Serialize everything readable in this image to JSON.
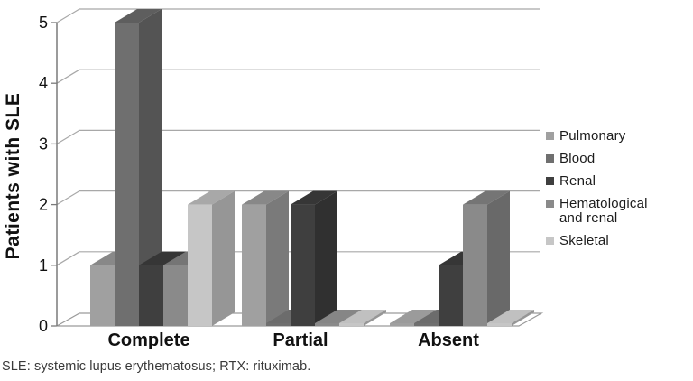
{
  "figure": {
    "caption": "SLE: systemic lupus erythematosus; RTX: rituximab."
  },
  "chart_data": {
    "type": "bar",
    "subtype": "3d-column",
    "title": "",
    "xlabel": "",
    "ylabel": "Patients with SLE",
    "ylim": [
      0,
      5
    ],
    "yticks": [
      0,
      1,
      2,
      3,
      4,
      5
    ],
    "grid": true,
    "legend_position": "right",
    "categories": [
      "Complete",
      "Partial",
      "Absent"
    ],
    "series": [
      {
        "name": "Pulmonary",
        "color": "#a0a0a0",
        "values": [
          1,
          2,
          0
        ]
      },
      {
        "name": "Blood",
        "color": "#6f6f6f",
        "values": [
          5,
          0,
          0
        ]
      },
      {
        "name": "Renal",
        "color": "#3f3f3f",
        "values": [
          1,
          2,
          1
        ]
      },
      {
        "name": "Hematological and renal",
        "color": "#8a8a8a",
        "values": [
          1,
          0,
          2
        ]
      },
      {
        "name": "Skeletal",
        "color": "#c6c6c6",
        "values": [
          2,
          0,
          0
        ]
      }
    ],
    "colors": {
      "gridline": "#a8a8a8",
      "axis": "#7a7a7a",
      "text": "#111111"
    }
  }
}
